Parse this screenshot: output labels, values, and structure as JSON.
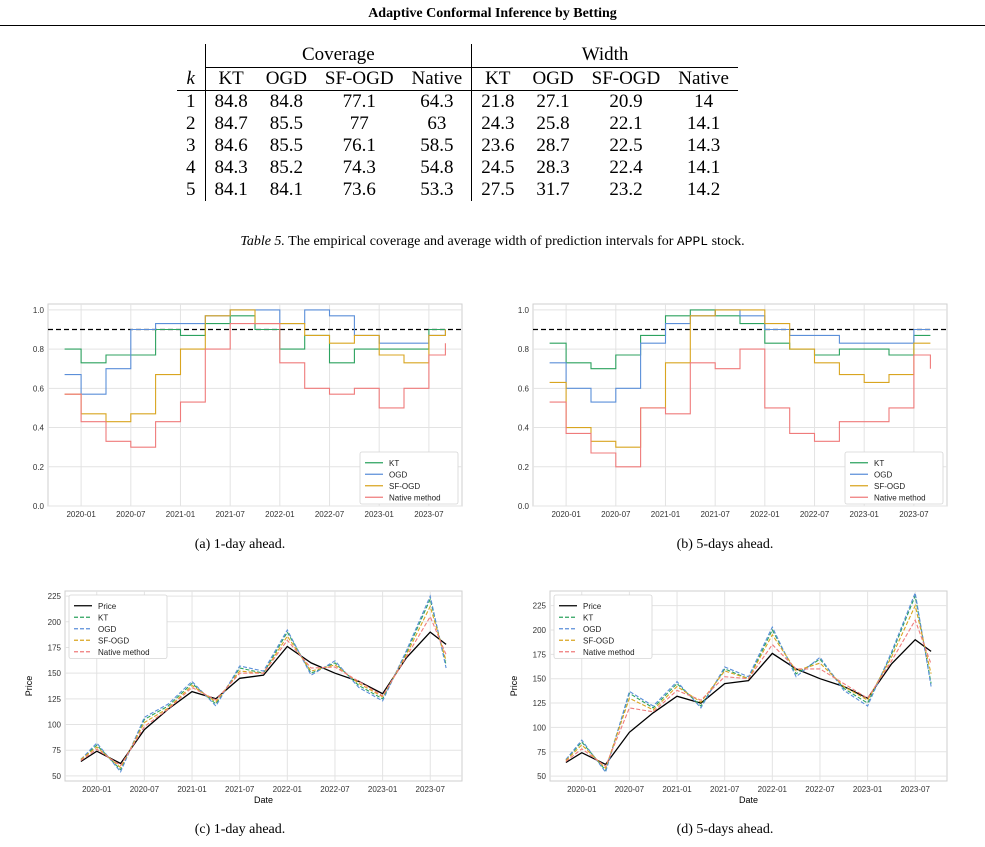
{
  "header": {
    "title": "Adaptive Conformal Inference by Betting"
  },
  "table": {
    "k_label": "k",
    "group1": "Coverage",
    "group2": "Width",
    "cols": [
      "KT",
      "OGD",
      "SF-OGD",
      "Native",
      "KT",
      "OGD",
      "SF-OGD",
      "Native"
    ],
    "rows": [
      [
        "1",
        "84.8",
        "84.8",
        "77.1",
        "64.3",
        "21.8",
        "27.1",
        "20.9",
        "14"
      ],
      [
        "2",
        "84.7",
        "85.5",
        "77",
        "63",
        "24.3",
        "25.8",
        "22.1",
        "14.1"
      ],
      [
        "3",
        "84.6",
        "85.5",
        "76.1",
        "58.5",
        "23.6",
        "28.7",
        "22.5",
        "14.3"
      ],
      [
        "4",
        "84.3",
        "85.2",
        "74.3",
        "54.8",
        "24.5",
        "28.3",
        "22.4",
        "14.1"
      ],
      [
        "5",
        "84.1",
        "84.1",
        "73.6",
        "53.3",
        "27.5",
        "31.7",
        "23.2",
        "14.2"
      ]
    ],
    "caption_label": "Table 5.",
    "caption_text": "The empirical coverage and average width of prediction intervals for",
    "caption_code": "APPL",
    "caption_end": "stock."
  },
  "colors": {
    "KT": "#2ca25f",
    "OGD": "#5b8fd9",
    "SF-OGD": "#d9a520",
    "Native": "#ef7b7b",
    "Price": "#000000"
  },
  "subcaptions": {
    "a": "(a) 1-day ahead.",
    "b": "(b) 5-days ahead.",
    "c": "(c) 1-day ahead.",
    "d": "(d) 5-days ahead."
  },
  "chart_data": [
    {
      "type": "line",
      "panel": "a",
      "x": [
        "2019-11",
        "2020-01",
        "2020-04",
        "2020-07",
        "2020-10",
        "2021-01",
        "2021-04",
        "2021-07",
        "2021-10",
        "2022-01",
        "2022-04",
        "2022-07",
        "2022-10",
        "2023-01",
        "2023-04",
        "2023-07",
        "2023-09"
      ],
      "xticks": [
        "2020-01",
        "2020-07",
        "2021-01",
        "2021-07",
        "2022-01",
        "2022-07",
        "2023-01",
        "2023-07"
      ],
      "yticks": [
        "0.0",
        "0.2",
        "0.4",
        "0.6",
        "0.8",
        "1.0"
      ],
      "ylim": [
        0,
        1.03
      ],
      "target_line": 0.9,
      "legend": "lower-right",
      "series": [
        {
          "name": "KT",
          "values": [
            0.8,
            0.73,
            0.77,
            0.77,
            0.9,
            0.87,
            0.93,
            0.97,
            0.9,
            0.8,
            0.87,
            0.73,
            0.8,
            0.8,
            0.8,
            0.9,
            0.9
          ]
        },
        {
          "name": "OGD",
          "values": [
            0.67,
            0.57,
            0.7,
            0.9,
            0.93,
            0.93,
            0.97,
            1.0,
            1.0,
            0.93,
            1.0,
            0.97,
            0.87,
            0.83,
            0.83,
            0.87,
            0.9
          ]
        },
        {
          "name": "SF-OGD",
          "values": [
            0.57,
            0.47,
            0.43,
            0.47,
            0.67,
            0.8,
            0.97,
            1.0,
            0.93,
            0.93,
            0.87,
            0.83,
            0.87,
            0.77,
            0.73,
            0.87,
            0.9
          ]
        },
        {
          "name": "Native method",
          "values": [
            0.57,
            0.43,
            0.33,
            0.3,
            0.43,
            0.53,
            0.8,
            0.93,
            0.93,
            0.73,
            0.6,
            0.57,
            0.6,
            0.5,
            0.6,
            0.77,
            0.83
          ]
        }
      ]
    },
    {
      "type": "line",
      "panel": "b",
      "x": [
        "2019-11",
        "2020-01",
        "2020-04",
        "2020-07",
        "2020-10",
        "2021-01",
        "2021-04",
        "2021-07",
        "2021-10",
        "2022-01",
        "2022-04",
        "2022-07",
        "2022-10",
        "2023-01",
        "2023-04",
        "2023-07",
        "2023-09"
      ],
      "xticks": [
        "2020-01",
        "2020-07",
        "2021-01",
        "2021-07",
        "2022-01",
        "2022-07",
        "2023-01",
        "2023-07"
      ],
      "yticks": [
        "0.0",
        "0.2",
        "0.4",
        "0.6",
        "0.8",
        "1.0"
      ],
      "ylim": [
        0,
        1.03
      ],
      "target_line": 0.9,
      "legend": "lower-right",
      "series": [
        {
          "name": "KT",
          "values": [
            0.83,
            0.73,
            0.7,
            0.77,
            0.87,
            0.97,
            1.0,
            0.97,
            0.93,
            0.83,
            0.8,
            0.77,
            0.8,
            0.8,
            0.77,
            0.87,
            0.87
          ]
        },
        {
          "name": "OGD",
          "values": [
            0.73,
            0.6,
            0.53,
            0.6,
            0.83,
            0.93,
            0.97,
            1.0,
            0.97,
            0.9,
            0.87,
            0.87,
            0.83,
            0.83,
            0.83,
            0.9,
            0.9
          ]
        },
        {
          "name": "SF-OGD",
          "values": [
            0.63,
            0.4,
            0.33,
            0.3,
            0.5,
            0.73,
            0.97,
            1.0,
            1.0,
            0.93,
            0.8,
            0.73,
            0.67,
            0.63,
            0.67,
            0.83,
            0.83
          ]
        },
        {
          "name": "Native method",
          "values": [
            0.53,
            0.37,
            0.27,
            0.2,
            0.5,
            0.47,
            0.73,
            0.7,
            0.8,
            0.5,
            0.37,
            0.33,
            0.43,
            0.43,
            0.5,
            0.77,
            0.7
          ]
        }
      ]
    },
    {
      "type": "line",
      "panel": "c",
      "xlabel": "Date",
      "ylabel": "Price",
      "x": [
        "2019-11",
        "2020-01",
        "2020-04",
        "2020-07",
        "2020-10",
        "2021-01",
        "2021-04",
        "2021-07",
        "2021-10",
        "2022-01",
        "2022-04",
        "2022-07",
        "2022-10",
        "2023-01",
        "2023-04",
        "2023-07",
        "2023-09"
      ],
      "xticks": [
        "2020-01",
        "2020-07",
        "2021-01",
        "2021-07",
        "2022-01",
        "2022-07",
        "2023-01",
        "2023-07"
      ],
      "yticks": [
        "50",
        "75",
        "100",
        "125",
        "150",
        "175",
        "200",
        "225"
      ],
      "ylim": [
        45,
        230
      ],
      "legend": "top-left",
      "series": [
        {
          "name": "Price",
          "values": [
            64,
            74,
            62,
            95,
            115,
            132,
            125,
            145,
            148,
            176,
            160,
            150,
            142,
            130,
            165,
            190,
            178
          ]
        },
        {
          "name": "KT",
          "values": [
            66,
            80,
            56,
            105,
            118,
            140,
            120,
            155,
            150,
            190,
            150,
            160,
            138,
            125,
            170,
            222,
            158
          ]
        },
        {
          "name": "OGD",
          "values": [
            66,
            82,
            54,
            107,
            120,
            142,
            118,
            157,
            152,
            192,
            148,
            162,
            136,
            123,
            172,
            225,
            155
          ]
        },
        {
          "name": "SF-OGD",
          "values": [
            66,
            78,
            58,
            102,
            116,
            138,
            122,
            152,
            150,
            186,
            152,
            158,
            140,
            127,
            168,
            215,
            162
          ]
        },
        {
          "name": "Native method",
          "values": [
            65,
            76,
            60,
            98,
            115,
            136,
            124,
            150,
            150,
            182,
            155,
            156,
            142,
            128,
            166,
            205,
            168
          ]
        }
      ]
    },
    {
      "type": "line",
      "panel": "d",
      "xlabel": "Date",
      "ylabel": "Price",
      "x": [
        "2019-11",
        "2020-01",
        "2020-04",
        "2020-07",
        "2020-10",
        "2021-01",
        "2021-04",
        "2021-07",
        "2021-10",
        "2022-01",
        "2022-04",
        "2022-07",
        "2022-10",
        "2023-01",
        "2023-04",
        "2023-07",
        "2023-09"
      ],
      "xticks": [
        "2020-01",
        "2020-07",
        "2021-01",
        "2021-07",
        "2022-01",
        "2022-07",
        "2023-01",
        "2023-07"
      ],
      "yticks": [
        "50",
        "75",
        "100",
        "125",
        "150",
        "175",
        "200",
        "225"
      ],
      "ylim": [
        45,
        240
      ],
      "legend": "top-left",
      "series": [
        {
          "name": "Price",
          "values": [
            64,
            74,
            62,
            95,
            115,
            132,
            125,
            145,
            148,
            176,
            160,
            150,
            142,
            130,
            165,
            190,
            178
          ]
        },
        {
          "name": "KT",
          "values": [
            67,
            85,
            56,
            135,
            120,
            145,
            122,
            160,
            150,
            200,
            155,
            170,
            140,
            125,
            175,
            235,
            145
          ]
        },
        {
          "name": "OGD",
          "values": [
            67,
            87,
            54,
            137,
            122,
            147,
            120,
            162,
            152,
            203,
            152,
            172,
            138,
            122,
            177,
            238,
            142
          ]
        },
        {
          "name": "SF-OGD",
          "values": [
            66,
            82,
            58,
            130,
            118,
            142,
            126,
            158,
            150,
            195,
            158,
            166,
            142,
            128,
            172,
            225,
            155
          ]
        },
        {
          "name": "Native method",
          "values": [
            65,
            78,
            60,
            120,
            116,
            138,
            128,
            152,
            150,
            185,
            160,
            160,
            145,
            130,
            168,
            210,
            165
          ]
        }
      ]
    }
  ]
}
